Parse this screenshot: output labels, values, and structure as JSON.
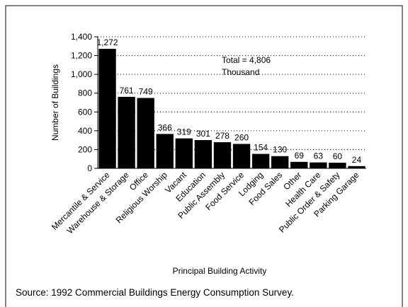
{
  "chart_data": {
    "type": "bar",
    "categories": [
      "Mercantile & Service",
      "Warehouse & Storage",
      "Office",
      "Religious Worship",
      "Vacant",
      "Education",
      "Public Assembly",
      "Food Service",
      "Lodging",
      "Food Sales",
      "Other",
      "Health Care",
      "Public Order & Safety",
      "Parking Garage"
    ],
    "values": [
      1272,
      761,
      749,
      366,
      319,
      301,
      278,
      260,
      154,
      130,
      69,
      63,
      60,
      24
    ],
    "value_labels": [
      "1,272",
      "761",
      "749",
      "366",
      "319",
      "301",
      "278",
      "260",
      "154",
      "130",
      "69",
      "63",
      "60",
      "24"
    ],
    "color": "#000000",
    "ylim": [
      0,
      1400
    ],
    "yticks": [
      0,
      200,
      400,
      600,
      800,
      {
        "value": 1000,
        "label": "1,000"
      },
      {
        "value": 1200,
        "label": "1,200"
      },
      {
        "value": 1400,
        "label": "1,400"
      }
    ],
    "grid": true,
    "xlabel": "Principal Building Activity",
    "ylabel": "Number of Buildings",
    "annotations": [
      "Total = 4,806",
      "Thousand"
    ],
    "source": "Source:  1992 Commercial Buildings Energy Consumption Survey."
  }
}
